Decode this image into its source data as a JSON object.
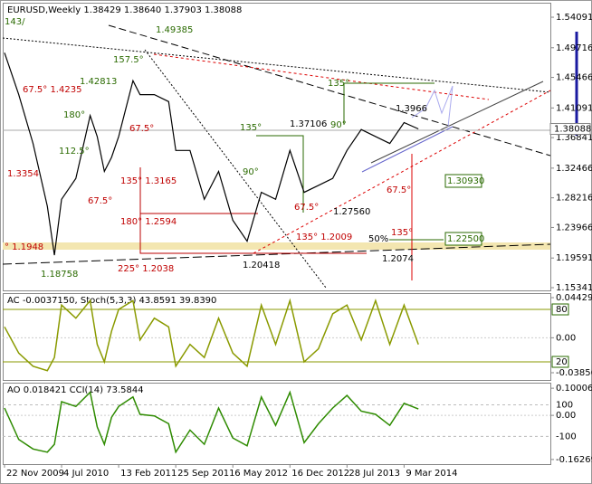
{
  "chart_data": [
    {
      "type": "line",
      "title": "EURUSD,Weekly  1.38429 1.38640 1.37903 1.38088",
      "x": [
        0,
        8,
        16,
        24,
        28,
        32,
        40,
        48,
        52,
        56,
        60,
        64,
        72,
        76,
        84,
        92,
        96,
        104,
        112,
        120,
        128,
        136,
        144,
        152,
        160,
        168,
        176,
        184,
        192,
        200,
        208,
        216,
        224,
        232
      ],
      "xlim": [
        -1,
        306
      ],
      "xticks": [
        {
          "value": 0,
          "label": "22 Nov 2009"
        },
        {
          "value": 32,
          "label": "4 Jul 2010"
        },
        {
          "value": 64,
          "label": "13 Feb 2011"
        },
        {
          "value": 96,
          "label": "25 Sep 2011"
        },
        {
          "value": 128,
          "label": "6 May 2012"
        },
        {
          "value": 160,
          "label": "16 Dec 2012"
        },
        {
          "value": 192,
          "label": "28 Jul 2013"
        },
        {
          "value": 224,
          "label": "9 Mar 2014"
        }
      ],
      "series": [
        {
          "color": "#000000",
          "values": [
            1.49,
            1.43,
            1.36,
            1.27,
            1.2,
            1.28,
            1.31,
            1.4,
            1.37,
            1.32,
            1.34,
            1.37,
            1.45,
            1.43,
            1.43,
            1.42,
            1.35,
            1.35,
            1.28,
            1.32,
            1.25,
            1.22,
            1.29,
            1.28,
            1.35,
            1.29,
            1.3,
            1.31,
            1.35,
            1.38,
            1.37,
            1.36,
            1.39,
            1.38088
          ]
        }
      ],
      "ylim": [
        1.1482,
        1.5604
      ],
      "yticks": [
        1.54091,
        1.49716,
        1.45466,
        1.41091,
        1.36841,
        1.32466,
        1.28216,
        1.23966,
        1.19591,
        1.15341
      ],
      "last_price": 1.38088,
      "annotations": [
        "1.49385",
        "157.5°",
        "1.42813",
        "180°",
        "67.5° 1.4235",
        "112.5°",
        "1.3354",
        "67.5°",
        "67.5°",
        "135° 1.3165",
        "180° 1.2594",
        "225° 1.2038",
        "° 1.1948",
        "1.18758",
        "90°",
        "135°",
        "1.37106",
        "1.20418",
        "67.5°",
        "1.27560",
        "135° 1.2009",
        "90°",
        "135°",
        "1.3966",
        "67.5°",
        "50%",
        "135°",
        "1.2074",
        "1.30930",
        "1.22500",
        "143/"
      ]
    },
    {
      "type": "line",
      "title": "AC -0.0037150, Stoch(5,3,3) 43.8591 39.8390",
      "ylim": [
        -0.04656,
        0.04829
      ],
      "yticks": [
        0.044294,
        {
          "value": 0,
          "label": "0.00"
        },
        -0.038569
      ],
      "y2lim": [
        -0.7,
        97.6
      ],
      "y2ticks": [
        80,
        20
      ],
      "series": [
        {
          "color": "#8a9a00",
          "axis": "y2",
          "values": [
            60,
            30,
            15,
            10,
            25,
            85,
            70,
            90,
            40,
            20,
            55,
            80,
            90,
            45,
            70,
            60,
            15,
            40,
            25,
            70,
            30,
            15,
            85,
            40,
            90,
            20,
            35,
            75,
            85,
            45,
            90,
            40,
            85,
            40
          ]
        }
      ]
    },
    {
      "type": "line",
      "title": "AO 0.018421  CCI(14) 73.5844",
      "ylim": [
        -0.17976,
        0.11713
      ],
      "yticks": [
        0.100061,
        {
          "value": 0,
          "label": "0.00"
        },
        -0.162699
      ],
      "y2lim": [
        -276,
        235
      ],
      "y2ticks": [
        100,
        -100
      ],
      "series": [
        {
          "color": "#2e8b00",
          "axis": "y2",
          "values": [
            80,
            -120,
            -180,
            -200,
            -150,
            120,
            90,
            180,
            -40,
            -150,
            20,
            90,
            150,
            40,
            30,
            -20,
            -200,
            -60,
            -150,
            80,
            -110,
            -160,
            150,
            -30,
            180,
            -140,
            -20,
            80,
            160,
            60,
            40,
            -30,
            110,
            73.5844
          ]
        }
      ]
    }
  ]
}
